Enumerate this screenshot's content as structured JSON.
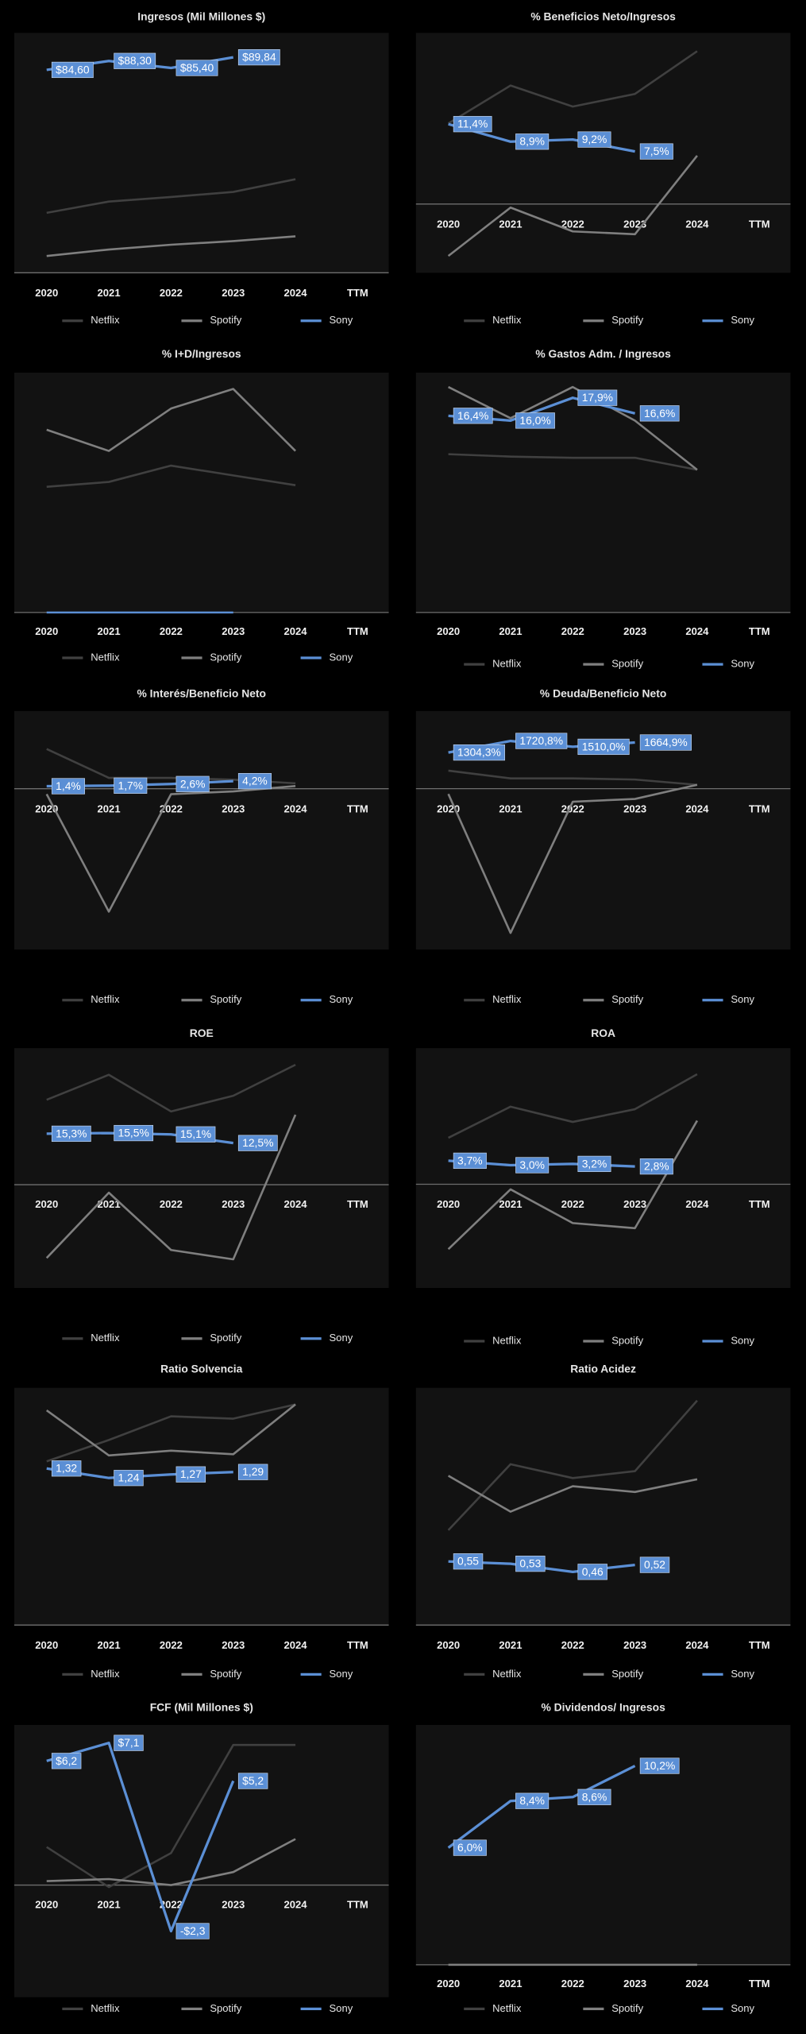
{
  "chart_data": [
    {
      "type": "line",
      "title": "Ingresos (Mil Millones $)",
      "categories": [
        "2020",
        "2021",
        "2022",
        "2023",
        "2024",
        "TTM"
      ],
      "ylim": [
        0,
        100
      ],
      "series": [
        {
          "name": "Netflix",
          "color": "#404040",
          "values": [
            25.0,
            29.7,
            31.6,
            33.7,
            39.0,
            null
          ]
        },
        {
          "name": "Spotify",
          "color": "#7f7f7f",
          "values": [
            7.0,
            9.7,
            11.7,
            13.2,
            15.2,
            null
          ]
        },
        {
          "name": "Sony",
          "color": "#5b8fd5",
          "values": [
            84.6,
            88.3,
            85.4,
            89.84,
            null,
            null
          ],
          "value_labels": [
            "$84,60",
            "$88,30",
            "$85,40",
            "$89,84",
            null,
            null
          ]
        }
      ]
    },
    {
      "type": "line",
      "title": "% Beneficios Neto/Ingresos",
      "categories": [
        "2020",
        "2021",
        "2022",
        "2023",
        "2024",
        "TTM"
      ],
      "ylim": [
        -9.8,
        24.4
      ],
      "series": [
        {
          "name": "Netflix",
          "color": "#404040",
          "values": [
            11.5,
            16.9,
            13.9,
            15.7,
            21.8,
            null
          ]
        },
        {
          "name": "Spotify",
          "color": "#7f7f7f",
          "values": [
            -7.4,
            -0.5,
            -3.9,
            -4.3,
            6.9,
            null
          ]
        },
        {
          "name": "Sony",
          "color": "#5b8fd5",
          "values": [
            11.4,
            8.9,
            9.2,
            7.5,
            null,
            null
          ],
          "value_labels": [
            "11,4%",
            "8,9%",
            "9,2%",
            "7,5%",
            null,
            null
          ]
        }
      ]
    },
    {
      "type": "line",
      "title": "% I+D/Ingresos",
      "categories": [
        "2020",
        "2021",
        "2022",
        "2023",
        "2024",
        "TTM"
      ],
      "ylim": [
        0,
        14.7
      ],
      "series": [
        {
          "name": "Netflix",
          "color": "#404040",
          "values": [
            7.7,
            8.0,
            9.0,
            8.4,
            7.8,
            null
          ]
        },
        {
          "name": "Spotify",
          "color": "#7f7f7f",
          "values": [
            11.2,
            9.9,
            12.5,
            13.7,
            9.9,
            null
          ]
        },
        {
          "name": "Sony",
          "color": "#5b8fd5",
          "values": [
            0,
            0,
            0,
            0,
            null,
            null
          ]
        }
      ]
    },
    {
      "type": "line",
      "title": "% Gastos Adm. / Ingresos",
      "categories": [
        "2020",
        "2021",
        "2022",
        "2023",
        "2024",
        "TTM"
      ],
      "ylim": [
        0,
        20
      ],
      "series": [
        {
          "name": "Netflix",
          "color": "#404040",
          "values": [
            13.2,
            13.0,
            12.9,
            12.9,
            11.9,
            null
          ]
        },
        {
          "name": "Spotify",
          "color": "#7f7f7f",
          "values": [
            18.8,
            16.2,
            18.8,
            16.0,
            11.9,
            null
          ]
        },
        {
          "name": "Sony",
          "color": "#5b8fd5",
          "values": [
            16.4,
            16.0,
            17.9,
            16.6,
            null,
            null
          ],
          "value_labels": [
            "16,4%",
            "16,0%",
            "17,9%",
            "16,6%",
            null,
            null
          ]
        }
      ]
    },
    {
      "type": "line",
      "title": "% Interés/Beneficio  Neto",
      "categories": [
        "2020",
        "2021",
        "2022",
        "2023",
        "2024",
        "TTM"
      ],
      "ylim": [
        -89,
        43
      ],
      "series": [
        {
          "name": "Netflix",
          "color": "#404040",
          "values": [
            22,
            6,
            6,
            5,
            3,
            null
          ]
        },
        {
          "name": "Spotify",
          "color": "#7f7f7f",
          "values": [
            -3,
            -68,
            -3,
            -1.5,
            1.5,
            null
          ]
        },
        {
          "name": "Sony",
          "color": "#5b8fd5",
          "values": [
            1.4,
            1.7,
            2.6,
            4.2,
            null,
            null
          ],
          "value_labels": [
            "1,4%",
            "1,7%",
            "2,6%",
            "4,2%",
            null,
            null
          ]
        }
      ]
    },
    {
      "type": "line",
      "title": "% Deuda/Beneficio  Neto",
      "categories": [
        "2020",
        "2021",
        "2022",
        "2023",
        "2024",
        "TTM"
      ],
      "ylim": [
        -5800,
        2800
      ],
      "series": [
        {
          "name": "Netflix",
          "color": "#404040",
          "values": [
            650,
            370,
            370,
            330,
            140,
            null
          ]
        },
        {
          "name": "Spotify",
          "color": "#7f7f7f",
          "values": [
            -190,
            -5200,
            -470,
            -370,
            140,
            null
          ]
        },
        {
          "name": "Sony",
          "color": "#5b8fd5",
          "values": [
            1304.3,
            1720.8,
            1510.0,
            1664.9,
            null,
            null
          ],
          "value_labels": [
            "1304,3%",
            "1720,8%",
            "1510,0%",
            "1664,9%",
            null,
            null
          ]
        }
      ]
    },
    {
      "type": "line",
      "title": "ROE",
      "categories": [
        "2020",
        "2021",
        "2022",
        "2023",
        "2024",
        "TTM"
      ],
      "ylim": [
        -31,
        41
      ],
      "series": [
        {
          "name": "Netflix",
          "color": "#404040",
          "values": [
            25.5,
            33,
            22,
            26.7,
            36,
            null
          ]
        },
        {
          "name": "Spotify",
          "color": "#7f7f7f",
          "values": [
            -22,
            -2.4,
            -19.6,
            -22.4,
            21,
            null
          ]
        },
        {
          "name": "Sony",
          "color": "#5b8fd5",
          "values": [
            15.3,
            15.5,
            15.1,
            12.5,
            null,
            null
          ],
          "value_labels": [
            "15,3%",
            "15,5%",
            "15,1%",
            "12,5%",
            null,
            null
          ]
        }
      ]
    },
    {
      "type": "line",
      "title": "ROA",
      "categories": [
        "2020",
        "2021",
        "2022",
        "2023",
        "2024",
        "TTM"
      ],
      "ylim": [
        -16.3,
        21.4
      ],
      "series": [
        {
          "name": "Netflix",
          "color": "#404040",
          "values": [
            7.3,
            12.2,
            9.8,
            11.8,
            17.3,
            null
          ]
        },
        {
          "name": "Spotify",
          "color": "#7f7f7f",
          "values": [
            -10.2,
            -0.8,
            -6.1,
            -6.9,
            10,
            null
          ]
        },
        {
          "name": "Sony",
          "color": "#5b8fd5",
          "values": [
            3.7,
            3.0,
            3.2,
            2.8,
            null,
            null
          ],
          "value_labels": [
            "3,7%",
            "3,0%",
            "3,2%",
            "2,8%",
            null,
            null
          ]
        }
      ]
    },
    {
      "type": "line",
      "title": "Ratio Solvencia",
      "categories": [
        "2020",
        "2021",
        "2022",
        "2023",
        "2024",
        "TTM"
      ],
      "ylim": [
        0,
        2
      ],
      "series": [
        {
          "name": "Netflix",
          "color": "#404040",
          "values": [
            1.38,
            1.56,
            1.76,
            1.74,
            1.86,
            null
          ]
        },
        {
          "name": "Spotify",
          "color": "#7f7f7f",
          "values": [
            1.81,
            1.43,
            1.47,
            1.44,
            1.86,
            null
          ]
        },
        {
          "name": "Sony",
          "color": "#5b8fd5",
          "values": [
            1.32,
            1.24,
            1.27,
            1.29,
            null,
            null
          ],
          "value_labels": [
            "1,32",
            "1,24",
            "1,27",
            "1,29",
            null,
            null
          ]
        }
      ]
    },
    {
      "type": "line",
      "title": "Ratio Acidez",
      "categories": [
        "2020",
        "2021",
        "2022",
        "2023",
        "2024",
        "TTM"
      ],
      "ylim": [
        0,
        2.05
      ],
      "series": [
        {
          "name": "Netflix",
          "color": "#404040",
          "values": [
            0.82,
            1.39,
            1.27,
            1.33,
            1.94,
            null
          ]
        },
        {
          "name": "Spotify",
          "color": "#7f7f7f",
          "values": [
            1.29,
            0.98,
            1.2,
            1.15,
            1.26,
            null
          ]
        },
        {
          "name": "Sony",
          "color": "#5b8fd5",
          "values": [
            0.55,
            0.53,
            0.46,
            0.52,
            null,
            null
          ],
          "value_labels": [
            "0,55",
            "0,53",
            "0,46",
            "0,52",
            null,
            null
          ]
        }
      ]
    },
    {
      "type": "line",
      "title": "FCF (Mil  Millones $)",
      "categories": [
        "2020",
        "2021",
        "2022",
        "2023",
        "2024",
        "TTM"
      ],
      "ylim": [
        -5.6,
        8
      ],
      "series": [
        {
          "name": "Netflix",
          "color": "#404040",
          "values": [
            1.9,
            -0.1,
            1.6,
            7.0,
            7.0,
            null
          ]
        },
        {
          "name": "Spotify",
          "color": "#7f7f7f",
          "values": [
            0.2,
            0.3,
            0,
            0.65,
            2.3,
            null
          ]
        },
        {
          "name": "Sony",
          "color": "#5b8fd5",
          "values": [
            6.2,
            7.1,
            -2.3,
            5.2,
            null,
            null
          ],
          "value_labels": [
            "$6,2",
            "$7,1",
            "-$2,3",
            "$5,2",
            null,
            null
          ]
        }
      ]
    },
    {
      "type": "line",
      "title": "% Dividendos/  Ingresos",
      "categories": [
        "2020",
        "2021",
        "2022",
        "2023",
        "2024",
        "TTM"
      ],
      "ylim": [
        0,
        12.3
      ],
      "series": [
        {
          "name": "Netflix",
          "color": "#404040",
          "values": [
            0,
            0,
            0,
            0,
            0,
            null
          ]
        },
        {
          "name": "Spotify",
          "color": "#7f7f7f",
          "values": [
            0,
            0,
            0,
            0,
            0,
            null
          ]
        },
        {
          "name": "Sony",
          "color": "#5b8fd5",
          "values": [
            6.0,
            8.4,
            8.6,
            10.2,
            null,
            null
          ],
          "value_labels": [
            "6,0%",
            "8,4%",
            "8,6%",
            "10,2%",
            null,
            null
          ]
        }
      ]
    }
  ]
}
